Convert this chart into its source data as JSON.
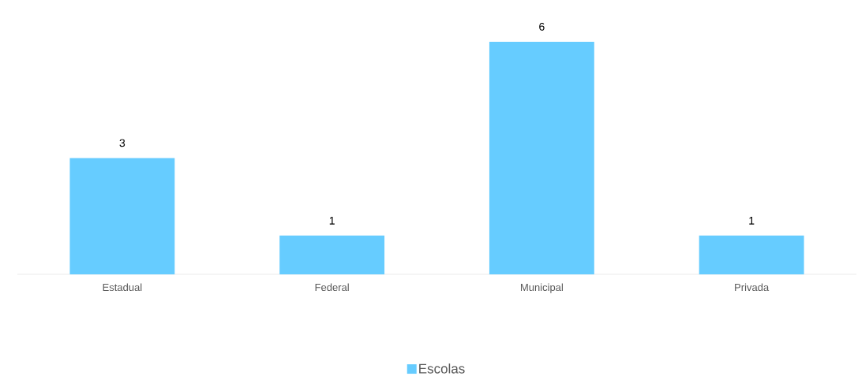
{
  "chart_data": {
    "type": "bar",
    "categories": [
      "Estadual",
      "Federal",
      "Municipal",
      "Privada"
    ],
    "series": [
      {
        "name": "Escolas",
        "color": "#66ccff",
        "values": [
          3,
          1,
          6,
          1
        ]
      }
    ],
    "data_labels": true,
    "legend": "bottom"
  }
}
